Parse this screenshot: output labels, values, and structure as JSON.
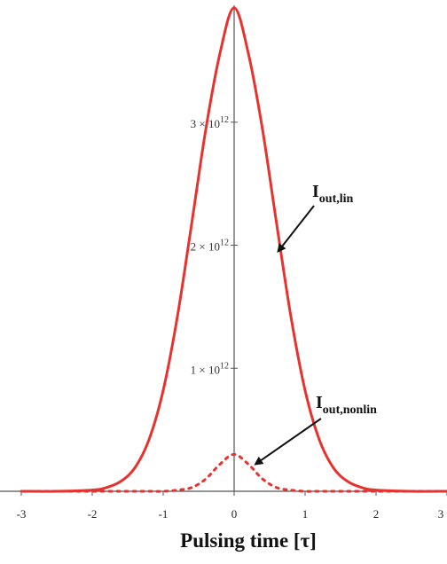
{
  "chart_data": {
    "type": "line",
    "title": "",
    "xlabel": "Pulsing time [τ]",
    "ylabel": "",
    "xlim": [
      -3,
      3
    ],
    "ylim": [
      0,
      3950000000000.0
    ],
    "x_ticks": [
      {
        "value": -3,
        "label": "-3"
      },
      {
        "value": -2,
        "label": "-2"
      },
      {
        "value": -1,
        "label": "-1"
      },
      {
        "value": 0,
        "label": "0"
      },
      {
        "value": 1,
        "label": "1"
      },
      {
        "value": 2,
        "label": "2"
      },
      {
        "value": 3,
        "label": "3"
      }
    ],
    "y_ticks": [
      {
        "value": 1000000000000.0,
        "base": "1 × 10",
        "exp": "12"
      },
      {
        "value": 2000000000000.0,
        "base": "2 × 10",
        "exp": "12"
      },
      {
        "value": 3000000000000.0,
        "base": "3 × 10",
        "exp": "12"
      }
    ],
    "grid": false,
    "series": [
      {
        "name": "I_out,lin",
        "style": "solid",
        "color": "#e8322f",
        "x": [
          -3,
          -2.5,
          -2,
          -1.8,
          -1.6,
          -1.4,
          -1.2,
          -1.0,
          -0.8,
          -0.6,
          -0.4,
          -0.2,
          0,
          0.2,
          0.4,
          0.6,
          0.8,
          1.0,
          1.2,
          1.4,
          1.6,
          1.8,
          2,
          2.5,
          3
        ],
        "y": [
          0,
          0,
          10000000000.0,
          30000000000.0,
          80000000000.0,
          190000000000.0,
          420000000000.0,
          820000000000.0,
          1420000000000.0,
          2170000000000.0,
          2940000000000.0,
          3560000000000.0,
          3930000000000.0,
          3560000000000.0,
          2940000000000.0,
          2170000000000.0,
          1420000000000.0,
          820000000000.0,
          420000000000.0,
          190000000000.0,
          80000000000.0,
          30000000000.0,
          10000000000.0,
          0,
          0
        ]
      },
      {
        "name": "I_out,nonlin",
        "style": "dotted",
        "color": "#e8322f",
        "x": [
          -3,
          -2.5,
          -2,
          -1.5,
          -1.2,
          -1.0,
          -0.8,
          -0.6,
          -0.4,
          -0.2,
          0,
          0.2,
          0.4,
          0.6,
          0.8,
          1.0,
          1.2,
          1.5,
          2,
          2.5,
          3
        ],
        "y": [
          0,
          0,
          0,
          0,
          0,
          0,
          10000000000.0,
          30000000000.0,
          100000000000.0,
          220000000000.0,
          300000000000.0,
          220000000000.0,
          100000000000.0,
          30000000000.0,
          10000000000.0,
          0,
          0,
          0,
          0,
          0,
          0
        ]
      }
    ],
    "annotations": [
      {
        "main": "I",
        "sub": "out,lin",
        "arrow_x": 0.62,
        "arrow_y": 1950000000000.0
      },
      {
        "main": "I",
        "sub": "out,nonlin",
        "arrow_x": 0.3,
        "arrow_y": 220000000000.0
      }
    ]
  }
}
